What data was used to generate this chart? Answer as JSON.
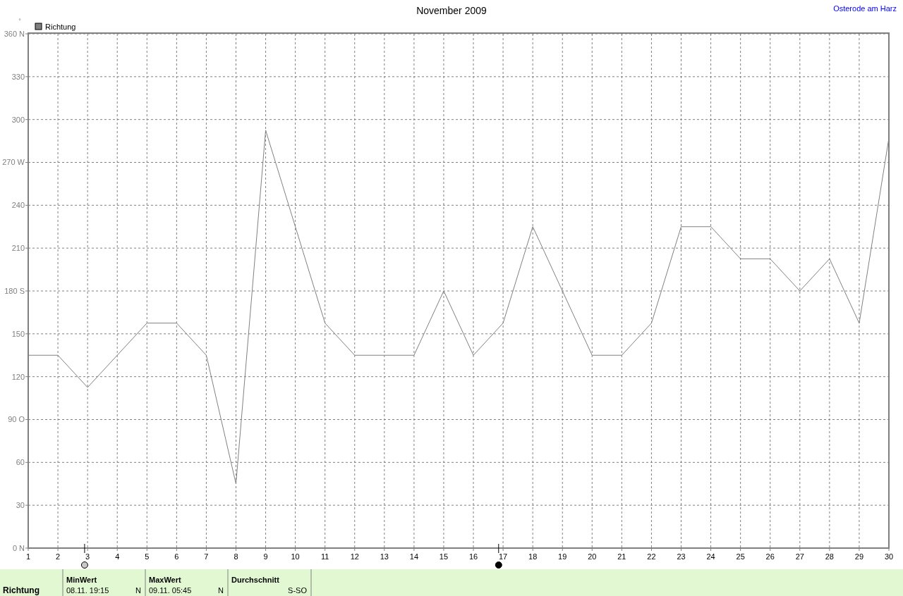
{
  "chart_data": {
    "type": "line",
    "title": "November 2009",
    "subtitle": "Osterode am Harz",
    "ylabel": "°",
    "x": [
      1,
      2,
      3,
      4,
      5,
      6,
      7,
      8,
      9,
      10,
      11,
      12,
      13,
      14,
      15,
      16,
      17,
      18,
      19,
      20,
      21,
      22,
      23,
      24,
      25,
      26,
      27,
      28,
      29,
      30
    ],
    "xlim": [
      1,
      30
    ],
    "xticks": [
      1,
      2,
      3,
      4,
      5,
      6,
      7,
      8,
      9,
      10,
      11,
      12,
      13,
      14,
      15,
      16,
      17,
      18,
      19,
      20,
      21,
      22,
      23,
      24,
      25,
      26,
      27,
      28,
      29,
      30
    ],
    "ylim": [
      0,
      360
    ],
    "yticks": [
      {
        "value": 0,
        "label": "0 N"
      },
      30,
      60,
      {
        "value": 90,
        "label": "90 O"
      },
      120,
      150,
      {
        "value": 180,
        "label": "180 S"
      },
      210,
      240,
      {
        "value": 270,
        "label": "270 W"
      },
      300,
      330,
      {
        "value": 360,
        "label": "360 N"
      }
    ],
    "series": [
      {
        "name": "Richtung",
        "color": "#808080",
        "values": [
          135,
          135,
          112.5,
          135,
          157.5,
          157.5,
          135,
          45,
          292.5,
          225,
          157.5,
          135,
          135,
          135,
          180,
          135,
          157.5,
          225,
          180,
          135,
          135,
          157.5,
          225,
          225,
          202.5,
          202.5,
          180,
          202.5,
          157.5,
          287
        ]
      }
    ],
    "grid": true,
    "legend": "top left",
    "line_style": "solid",
    "annotations": [
      "Richtung",
      "MinWert",
      "08.11. 19:15",
      "N",
      "MaxWert",
      "09.11. 05:45",
      "N",
      "Durchschnitt",
      "S-SO"
    ]
  }
}
